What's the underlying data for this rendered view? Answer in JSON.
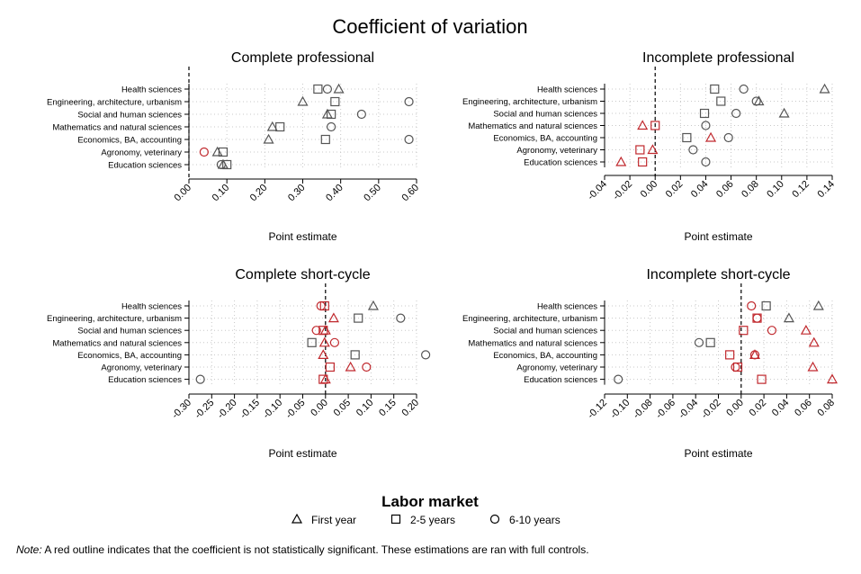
{
  "title": "Coefficient of variation",
  "legend": {
    "title": "Labor market",
    "items": [
      "First year",
      "2-5 years",
      "6-10 years"
    ]
  },
  "note": {
    "prefix": "Note:",
    "text": " A red outline indicates that the coefficient is not statistically significant. These estimations are ran with full controls."
  },
  "colors": {
    "significant": "#555555",
    "not_significant": "#c0282d",
    "refline": "#000000",
    "grid": "#c8c8c8"
  },
  "chart_data": [
    {
      "type": "scatter",
      "title": "Complete professional",
      "xlabel": "Point estimate",
      "xlim": [
        0.0,
        0.6
      ],
      "xticks": [
        0.0,
        0.1,
        0.2,
        0.3,
        0.4,
        0.5,
        0.6
      ],
      "tick_decimals": 2,
      "categories": [
        "Health sciences",
        "Engineering, architecture, urbanism",
        "Social and human sciences",
        "Mathematics and natural sciences",
        "Economics, BA, accounting",
        "Agronomy, veterinary",
        "Education sciences"
      ],
      "series": [
        {
          "name": "First year",
          "marker": "triangle",
          "values": [
            0.395,
            0.3,
            0.365,
            0.22,
            0.21,
            0.075,
            0.09
          ],
          "significant": [
            true,
            true,
            true,
            true,
            true,
            true,
            true
          ]
        },
        {
          "name": "2-5 years",
          "marker": "square",
          "values": [
            0.34,
            0.385,
            0.375,
            0.24,
            0.36,
            0.09,
            0.1
          ],
          "significant": [
            true,
            true,
            true,
            true,
            true,
            true,
            true
          ]
        },
        {
          "name": "6-10 years",
          "marker": "circle",
          "values": [
            0.365,
            0.58,
            0.455,
            0.375,
            0.58,
            0.04,
            0.085
          ],
          "significant": [
            true,
            true,
            true,
            true,
            true,
            false,
            true
          ]
        }
      ]
    },
    {
      "type": "scatter",
      "title": "Incomplete professional",
      "xlabel": "Point estimate",
      "xlim": [
        -0.04,
        0.14
      ],
      "xticks": [
        -0.04,
        -0.02,
        0.0,
        0.02,
        0.04,
        0.06,
        0.08,
        0.1,
        0.12,
        0.14
      ],
      "tick_decimals": 2,
      "categories": [
        "Health sciences",
        "Engineering, architecture, urbanism",
        "Social and human sciences",
        "Mathematics and natural sciences",
        "Economics, BA, accounting",
        "Agronomy, veterinary",
        "Education sciences"
      ],
      "series": [
        {
          "name": "First year",
          "marker": "triangle",
          "values": [
            0.134,
            0.082,
            0.102,
            -0.01,
            0.044,
            -0.002,
            -0.027
          ],
          "significant": [
            true,
            true,
            true,
            false,
            false,
            false,
            false
          ]
        },
        {
          "name": "2-5 years",
          "marker": "square",
          "values": [
            0.047,
            0.052,
            0.039,
            0.0,
            0.025,
            -0.012,
            -0.01
          ],
          "significant": [
            true,
            true,
            true,
            false,
            true,
            false,
            false
          ]
        },
        {
          "name": "6-10 years",
          "marker": "circle",
          "values": [
            0.07,
            0.08,
            0.064,
            0.04,
            0.058,
            0.03,
            0.04
          ],
          "significant": [
            true,
            true,
            true,
            true,
            true,
            true,
            true
          ]
        }
      ]
    },
    {
      "type": "scatter",
      "title": "Complete short-cycle",
      "xlabel": "Point estimate",
      "xlim": [
        -0.3,
        0.2
      ],
      "xticks": [
        -0.3,
        -0.25,
        -0.2,
        -0.15,
        -0.1,
        -0.05,
        0.0,
        0.05,
        0.1,
        0.15,
        0.2
      ],
      "tick_decimals": 2,
      "categories": [
        "Health sciences",
        "Engineering, architecture, urbanism",
        "Social and human sciences",
        "Mathematics and natural sciences",
        "Economics, BA, accounting",
        "Agronomy, veterinary",
        "Education sciences"
      ],
      "series": [
        {
          "name": "First year",
          "marker": "triangle",
          "values": [
            0.105,
            0.018,
            0.0,
            -0.002,
            -0.005,
            0.055,
            0.0
          ],
          "significant": [
            true,
            false,
            false,
            false,
            false,
            false,
            false
          ]
        },
        {
          "name": "2-5 years",
          "marker": "square",
          "values": [
            -0.002,
            0.072,
            -0.005,
            -0.03,
            0.065,
            0.01,
            -0.005
          ],
          "significant": [
            false,
            true,
            false,
            true,
            true,
            false,
            false
          ]
        },
        {
          "name": "6-10 years",
          "marker": "circle",
          "values": [
            -0.01,
            0.165,
            -0.02,
            0.02,
            0.22,
            0.09,
            -0.275
          ],
          "significant": [
            false,
            true,
            false,
            false,
            true,
            false,
            true
          ]
        }
      ]
    },
    {
      "type": "scatter",
      "title": "Incomplete short-cycle",
      "xlabel": "Point estimate",
      "xlim": [
        -0.12,
        0.08
      ],
      "xticks": [
        -0.12,
        -0.1,
        -0.08,
        -0.06,
        -0.04,
        -0.02,
        0.0,
        0.02,
        0.04,
        0.06,
        0.08
      ],
      "tick_decimals": 2,
      "categories": [
        "Health sciences",
        "Engineering, architecture, urbanism",
        "Social and human sciences",
        "Mathematics and natural sciences",
        "Economics, BA, accounting",
        "Agronomy, veterinary",
        "Education sciences"
      ],
      "series": [
        {
          "name": "First year",
          "marker": "triangle",
          "values": [
            0.068,
            0.042,
            0.057,
            0.064,
            0.012,
            0.063,
            0.08
          ],
          "significant": [
            true,
            true,
            false,
            false,
            false,
            false,
            false
          ]
        },
        {
          "name": "2-5 years",
          "marker": "square",
          "values": [
            0.022,
            0.014,
            0.002,
            -0.027,
            -0.01,
            -0.003,
            0.018
          ],
          "significant": [
            true,
            false,
            false,
            true,
            false,
            false,
            false
          ]
        },
        {
          "name": "6-10 years",
          "marker": "circle",
          "values": [
            0.009,
            0.014,
            0.027,
            -0.037,
            0.012,
            -0.005,
            -0.108
          ],
          "significant": [
            false,
            false,
            false,
            true,
            false,
            false,
            true
          ]
        }
      ]
    }
  ]
}
